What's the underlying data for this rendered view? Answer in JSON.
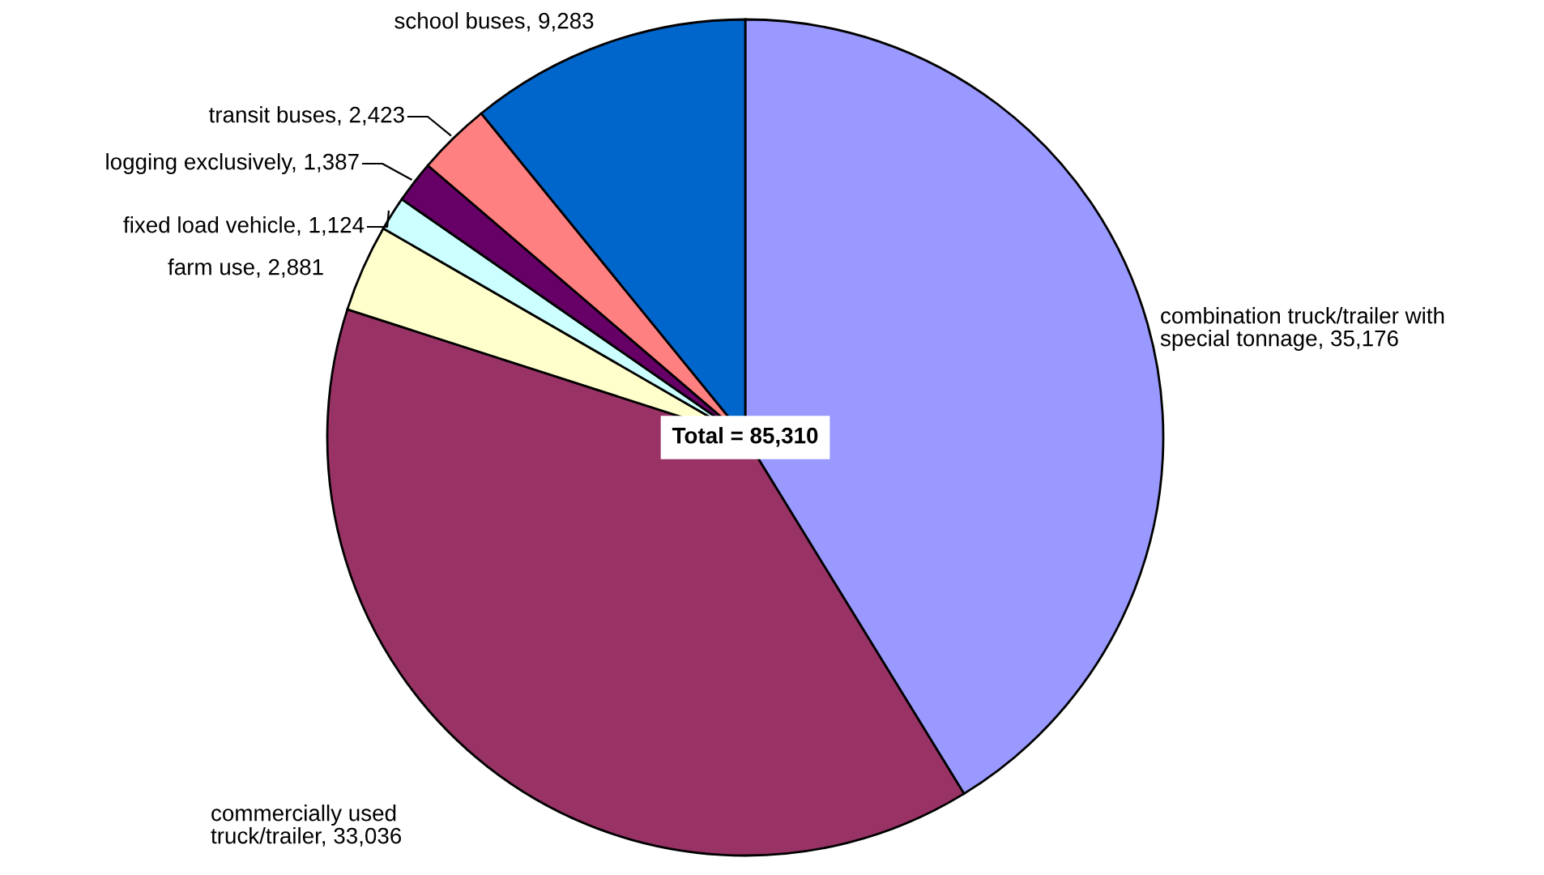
{
  "chart_data": {
    "type": "pie",
    "categories": [
      "combination truck/trailer with special tonnage",
      "commercially used truck/trailer",
      "farm use",
      "fixed load vehicle",
      "logging exclusively",
      "transit buses",
      "school buses"
    ],
    "values": [
      35176,
      33036,
      2881,
      1124,
      1387,
      2423,
      9283
    ],
    "value_labels": [
      "35,176",
      "33,036",
      "2,881",
      "1,124",
      "1,387",
      "2,423",
      "9,283"
    ],
    "colors": [
      "#9999ff",
      "#993366",
      "#ffffcc",
      "#ccffff",
      "#660066",
      "#ff8080",
      "#0066cc"
    ],
    "annotations": [
      "Total = 85,310"
    ]
  }
}
